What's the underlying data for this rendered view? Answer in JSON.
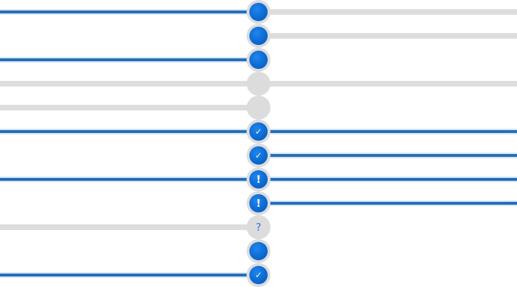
{
  "colors": {
    "track_gray": "#dddddd",
    "track_blue": "#1a6fc9",
    "node_blue": "#0a6bd4",
    "node_ring": "#dcdcdc",
    "question_mark": "#2f7fd6"
  },
  "icons": {
    "check": "✓",
    "exclaim": "!",
    "question": "?"
  },
  "rows": [
    {
      "left": "blue",
      "right": "gray",
      "node": "blue",
      "icon": ""
    },
    {
      "left": "none",
      "right": "gray",
      "node": "blue",
      "icon": ""
    },
    {
      "left": "blue",
      "right": "none",
      "node": "blue",
      "icon": ""
    },
    {
      "left": "gray",
      "right": "gray",
      "node": "gray",
      "icon": ""
    },
    {
      "left": "gray",
      "right": "none",
      "node": "gray",
      "icon": ""
    },
    {
      "left": "blue",
      "right": "blue",
      "node": "blue",
      "icon": "check"
    },
    {
      "left": "none",
      "right": "blue",
      "node": "blue",
      "icon": "check"
    },
    {
      "left": "blue",
      "right": "blue",
      "node": "blue",
      "icon": "exclaim"
    },
    {
      "left": "none",
      "right": "blue",
      "node": "blue",
      "icon": "exclaim"
    },
    {
      "left": "gray",
      "right": "none",
      "node": "question",
      "icon": "question"
    },
    {
      "left": "none",
      "right": "none",
      "node": "blue",
      "icon": ""
    },
    {
      "left": "blue",
      "right": "none",
      "node": "blue",
      "icon": "check"
    }
  ]
}
